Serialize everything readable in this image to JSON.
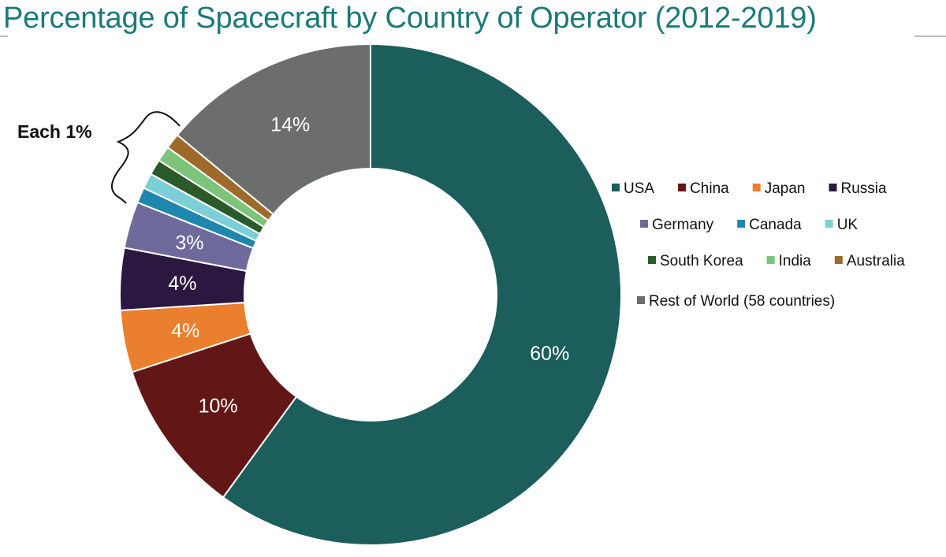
{
  "chart_data": {
    "type": "pie",
    "variant": "donut",
    "title": "Percentage of Spacecraft by Country of Operator (2012-2019)",
    "categories": [
      "USA",
      "China",
      "Japan",
      "Russia",
      "Germany",
      "Canada",
      "UK",
      "South Korea",
      "India",
      "Australia",
      "Rest of World (58 countries)"
    ],
    "values": [
      60,
      10,
      4,
      4,
      3,
      1,
      1,
      1,
      1,
      1,
      14
    ],
    "data_labels": [
      "60%",
      "10%",
      "4%",
      "4%",
      "3%",
      "",
      "",
      "",
      "",
      "",
      "14%"
    ],
    "colors": [
      "#1b5e5c",
      "#621716",
      "#ea7f2e",
      "#2b1740",
      "#6e6a9c",
      "#1f86ad",
      "#7ccfd6",
      "#2a5a2a",
      "#7cc47a",
      "#9e6a2c",
      "#6b6e6c"
    ],
    "annotation": "Each 1%",
    "legend_position": "right"
  }
}
